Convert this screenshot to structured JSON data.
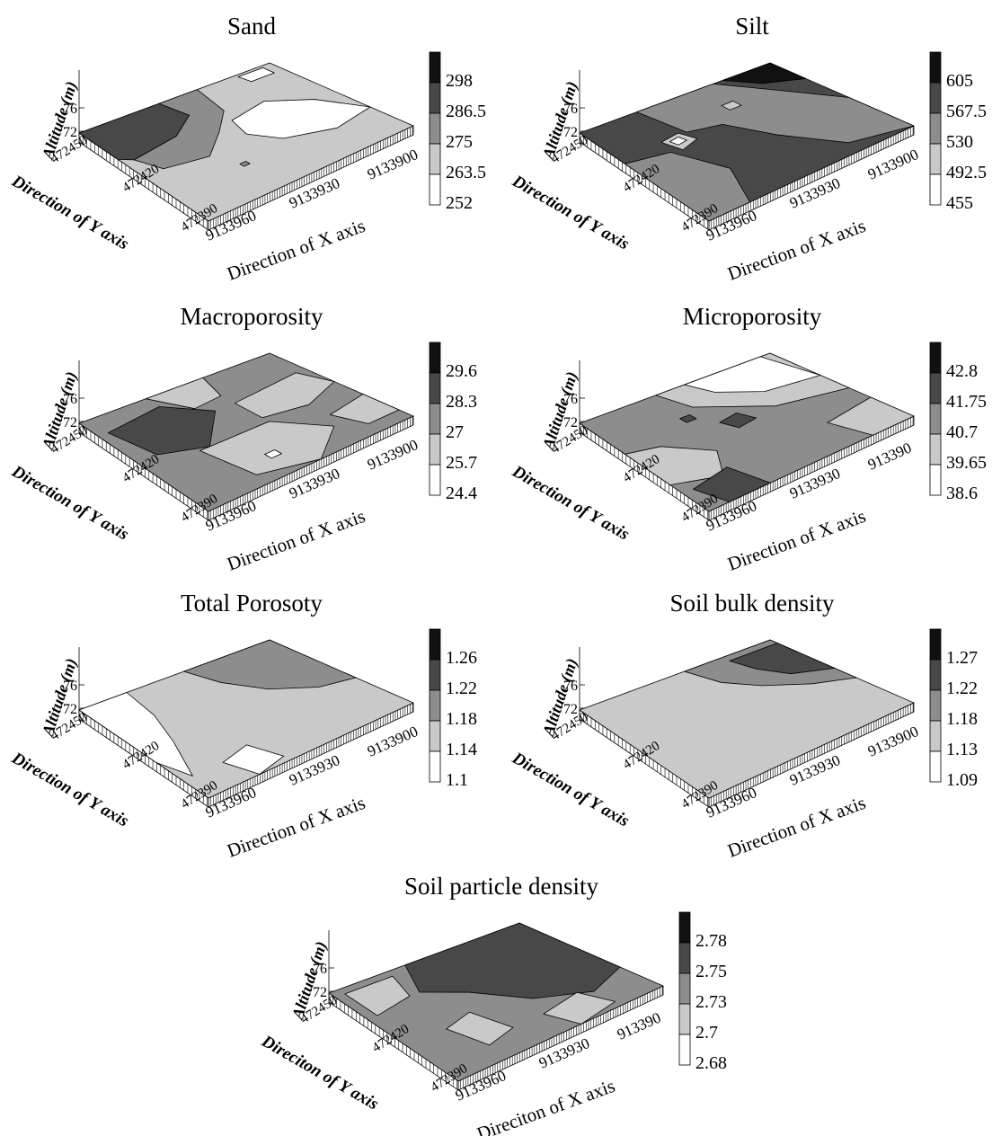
{
  "colors": {
    "level_0": "#ffffff",
    "level_1": "#c9c9c9",
    "level_2": "#8d8d8d",
    "level_3": "#484848",
    "level_4": "#111111",
    "outline": "#000000"
  },
  "chart_data": [
    {
      "type": "3d-surface-contour",
      "title": "Sand",
      "zlabel": "Altitude (m)",
      "ylabel": "Direction of Y axis",
      "xlabel": "Direction of X axis",
      "z_ticks": [
        "76",
        "72"
      ],
      "y_ticks": [
        "472450",
        "472420",
        "472390"
      ],
      "x_ticks": [
        "9133960",
        "9133930",
        "9133900"
      ],
      "legend_levels": [
        "298",
        "286.5",
        "275",
        "263.5",
        "252"
      ]
    },
    {
      "type": "3d-surface-contour",
      "title": "Silt",
      "zlabel": "Altitude (m)",
      "ylabel": "Direction of Y axis",
      "xlabel": "Direction of X axis",
      "z_ticks": [
        "76",
        "72"
      ],
      "y_ticks": [
        "472450",
        "472420",
        "472390"
      ],
      "x_ticks": [
        "9133960",
        "9133930",
        "9133900"
      ],
      "legend_levels": [
        "605",
        "567.5",
        "530",
        "492.5",
        "455"
      ]
    },
    {
      "type": "3d-surface-contour",
      "title": "Macroporosity",
      "zlabel": "Altitude (m)",
      "ylabel": "Direction of Y axis",
      "xlabel": "Direction of X axis",
      "z_ticks": [
        "76",
        "72"
      ],
      "y_ticks": [
        "472450",
        "472420",
        "472390"
      ],
      "x_ticks": [
        "9133960",
        "9133930",
        "9133900"
      ],
      "legend_levels": [
        "29.6",
        "28.3",
        "27",
        "25.7",
        "24.4"
      ]
    },
    {
      "type": "3d-surface-contour",
      "title": "Microporosity",
      "zlabel": "Altitude (m)",
      "ylabel": "Direction of Y axis",
      "xlabel": "Direction of X axis",
      "z_ticks": [
        "76",
        "72"
      ],
      "y_ticks": [
        "472450",
        "472420",
        "472390"
      ],
      "x_ticks": [
        "9133960",
        "9133930",
        "913390"
      ],
      "legend_levels": [
        "42.8",
        "41.75",
        "40.7",
        "39.65",
        "38.6"
      ]
    },
    {
      "type": "3d-surface-contour",
      "title": "Total Porosoty",
      "zlabel": "Altitude (m)",
      "ylabel": "Direction of Y axis",
      "xlabel": "Direction of X axis",
      "z_ticks": [
        "76",
        "72"
      ],
      "y_ticks": [
        "472450",
        "472420",
        "472390"
      ],
      "x_ticks": [
        "9133960",
        "9133930",
        "9133900"
      ],
      "legend_levels": [
        "1.26",
        "1.22",
        "1.18",
        "1.14",
        "1.1"
      ]
    },
    {
      "type": "3d-surface-contour",
      "title": "Soil bulk density",
      "zlabel": "Altitude (m)",
      "ylabel": "Direction of Y axis",
      "xlabel": "Direction of X axis",
      "z_ticks": [
        "76",
        "72"
      ],
      "y_ticks": [
        "472450",
        "472420",
        "472390"
      ],
      "x_ticks": [
        "9133960",
        "9133930",
        "9133900"
      ],
      "legend_levels": [
        "1.27",
        "1.22",
        "1.18",
        "1.13",
        "1.09"
      ]
    },
    {
      "type": "3d-surface-contour",
      "title": "Soil particle density",
      "zlabel": "Altitude (m)",
      "ylabel": "Direciton of Y axis",
      "xlabel": "Direciton of X axis",
      "z_ticks": [
        "76",
        "72"
      ],
      "y_ticks": [
        "472450",
        "472420",
        "472390"
      ],
      "x_ticks": [
        "9133960",
        "9133930",
        "913390"
      ],
      "legend_levels": [
        "2.78",
        "2.75",
        "2.73",
        "2.7",
        "2.68"
      ]
    }
  ]
}
